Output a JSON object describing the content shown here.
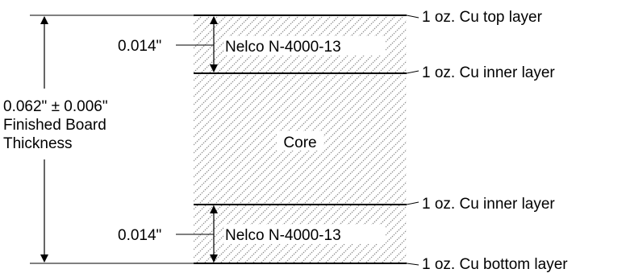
{
  "layers": {
    "top": "1 oz. Cu top layer",
    "inner_top": "1 oz. Cu inner layer",
    "inner_bottom": "1 oz. Cu inner layer",
    "bottom": "1 oz. Cu bottom layer"
  },
  "prepreg": {
    "top_material": "Nelco N-4000-13",
    "bottom_material": "Nelco N-4000-13",
    "top_thickness": "0.014\"",
    "bottom_thickness": "0.014\""
  },
  "core": {
    "label": "Core"
  },
  "board": {
    "thickness": "0.062\" ± 0.006\"",
    "caption_line1": "Finished Board",
    "caption_line2": "Thickness"
  },
  "colors": {
    "line": "#000000",
    "hatch": "#8a8a8a",
    "background": "#ffffff"
  }
}
